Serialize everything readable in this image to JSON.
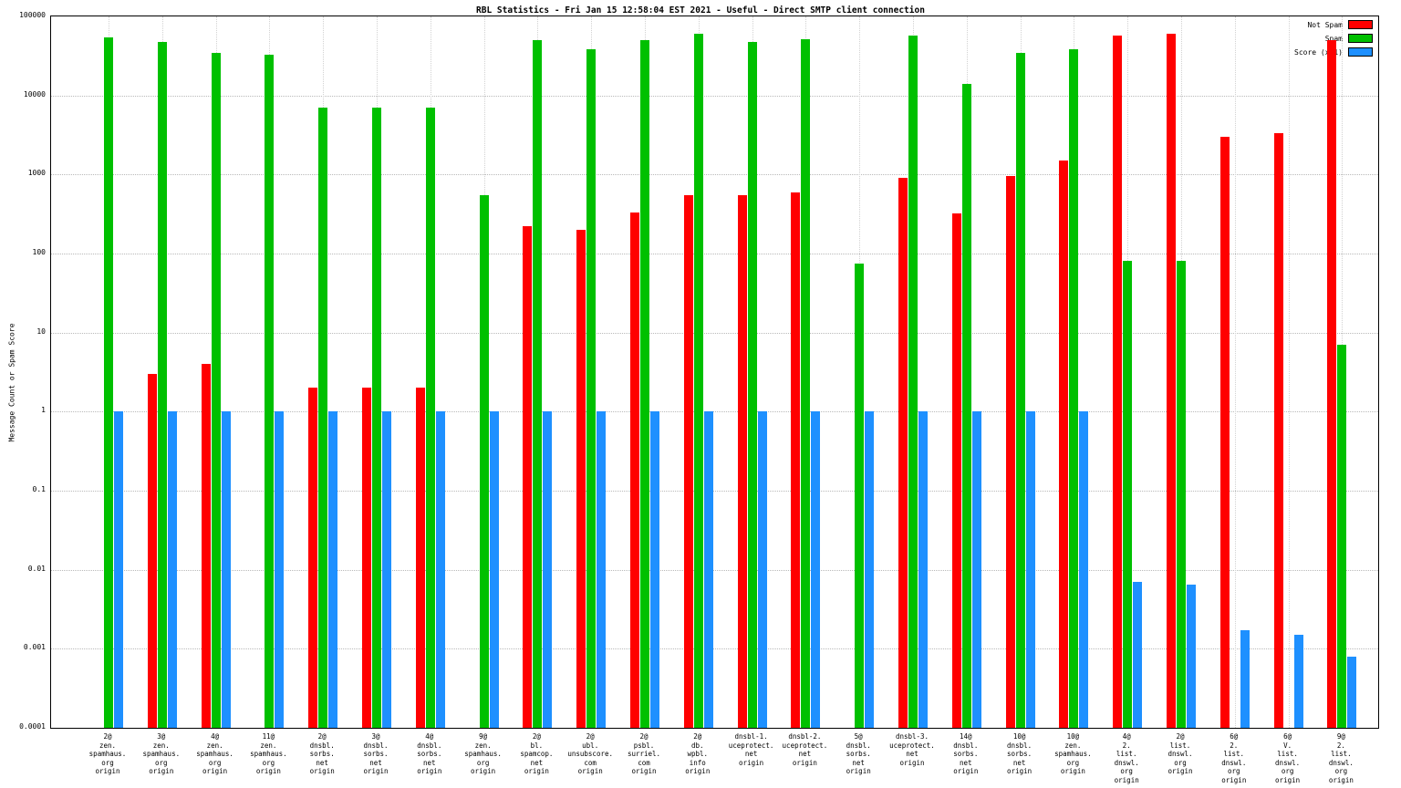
{
  "title": "RBL Statistics - Fri Jan 15 12:58:04 EST 2021 - Useful - Direct SMTP client connection",
  "ylabel": "Message Count or Spam Score",
  "chart_data": {
    "type": "bar",
    "scale": "log",
    "ylim": [
      0.0001,
      100000
    ],
    "y_ticks": [
      "100000",
      "10000",
      "1000",
      "100",
      "10",
      "1",
      "0.1",
      "0.01",
      "0.001",
      "0.0001"
    ],
    "grid": true,
    "legend_position": "top-right",
    "series": [
      {
        "name": "Not Spam",
        "color": "#ff0000",
        "values": [
          null,
          3,
          4,
          null,
          2,
          2,
          2,
          null,
          220,
          200,
          330,
          550,
          550,
          600,
          null,
          900,
          320,
          950,
          1500,
          58000,
          60000,
          3000,
          3300,
          50000
        ]
      },
      {
        "name": "Spam",
        "color": "#00c000",
        "values": [
          55000,
          48000,
          35000,
          33000,
          7000,
          7000,
          7000,
          550,
          50000,
          38000,
          50000,
          60000,
          48000,
          52000,
          75,
          57000,
          14000,
          35000,
          38000,
          80,
          80,
          null,
          null,
          7
        ]
      },
      {
        "name": "Score (x.1)",
        "color": "#1e90ff",
        "values": [
          1,
          1,
          1,
          1,
          1,
          1,
          1,
          1,
          1,
          1,
          1,
          1,
          1,
          1,
          1,
          1,
          1,
          1,
          1,
          0.007,
          0.0065,
          0.0017,
          0.0015,
          0.0008
        ]
      }
    ],
    "categories": [
      [
        "2@",
        "zen.",
        "spamhaus.",
        "org",
        "origin"
      ],
      [
        "3@",
        "zen.",
        "spamhaus.",
        "org",
        "origin"
      ],
      [
        "4@",
        "zen.",
        "spamhaus.",
        "org",
        "origin"
      ],
      [
        "11@",
        "zen.",
        "spamhaus.",
        "org",
        "origin"
      ],
      [
        "2@",
        "dnsbl.",
        "sorbs.",
        "net",
        "origin"
      ],
      [
        "3@",
        "dnsbl.",
        "sorbs.",
        "net",
        "origin"
      ],
      [
        "4@",
        "dnsbl.",
        "sorbs.",
        "net",
        "origin"
      ],
      [
        "9@",
        "zen.",
        "spamhaus.",
        "org",
        "origin"
      ],
      [
        "2@",
        "bl.",
        "spamcop.",
        "net",
        "origin"
      ],
      [
        "2@",
        "ubl.",
        "unsubscore.",
        "com",
        "origin"
      ],
      [
        "2@",
        "psbl.",
        "surriel.",
        "com",
        "origin"
      ],
      [
        "2@",
        "db.",
        "wpbl.",
        "info",
        "origin"
      ],
      [
        "dnsbl-1.",
        "uceprotect.",
        "net",
        "origin"
      ],
      [
        "dnsbl-2.",
        "uceprotect.",
        "net",
        "origin"
      ],
      [
        "5@",
        "dnsbl.",
        "sorbs.",
        "net",
        "origin"
      ],
      [
        "dnsbl-3.",
        "uceprotect.",
        "net",
        "origin"
      ],
      [
        "14@",
        "dnsbl.",
        "sorbs.",
        "net",
        "origin"
      ],
      [
        "10@",
        "dnsbl.",
        "sorbs.",
        "net",
        "origin"
      ],
      [
        "10@",
        "zen.",
        "spamhaus.",
        "org",
        "origin"
      ],
      [
        "4@",
        "2.",
        "list.",
        "dnswl.",
        "org",
        "origin"
      ],
      [
        "2@",
        "list.",
        "dnswl.",
        "org",
        "origin"
      ],
      [
        "6@",
        "2.",
        "list.",
        "dnswl.",
        "org",
        "origin"
      ],
      [
        "6@",
        "V.",
        "list.",
        "dnswl.",
        "org",
        "origin"
      ],
      [
        "9@",
        "2.",
        "list.",
        "dnswl.",
        "org",
        "origin"
      ]
    ]
  }
}
